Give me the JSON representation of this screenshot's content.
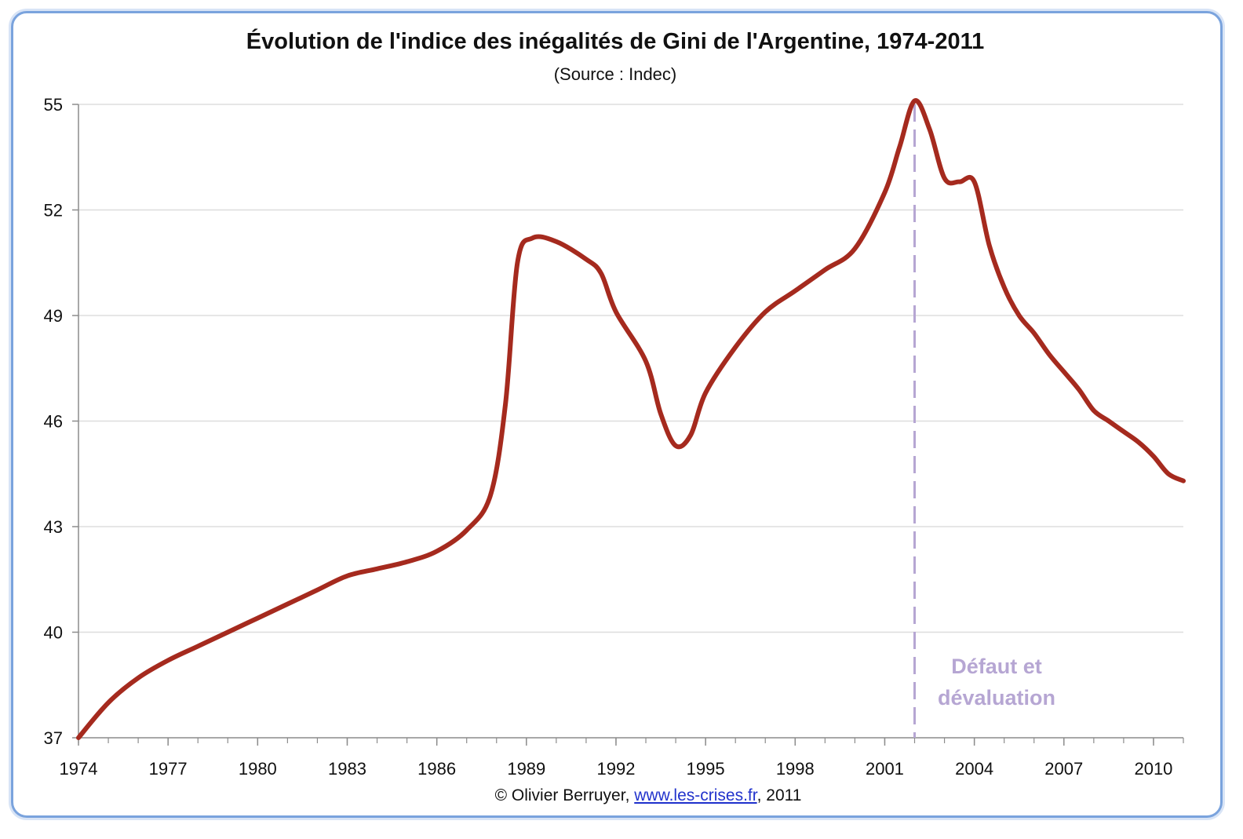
{
  "chart_data": {
    "type": "line",
    "title": "Évolution de l'indice des inégalités de Gini de l'Argentine, 1974-2011",
    "subtitle": "(Source : Indec)",
    "xlabel": "",
    "ylabel": "",
    "xlim": [
      1974,
      2011
    ],
    "ylim": [
      37,
      55
    ],
    "x_ticks": [
      1974,
      1977,
      1980,
      1983,
      1986,
      1989,
      1992,
      1995,
      1998,
      2001,
      2004,
      2007,
      2010
    ],
    "y_ticks": [
      37,
      40,
      43,
      46,
      49,
      52,
      55
    ],
    "grid": true,
    "line_color": "#a52a1e",
    "series": [
      {
        "x": [
          1974,
          1975,
          1976,
          1977,
          1978,
          1979,
          1980,
          1981,
          1982,
          1983,
          1984,
          1985,
          1986,
          1987,
          1987.8,
          1988.3,
          1988.7,
          1989.2,
          1990,
          1991,
          1991.5,
          1992,
          1993,
          1993.5,
          1994,
          1994.5,
          1995,
          1996,
          1997,
          1998,
          1999,
          2000,
          2001,
          2001.5,
          2002,
          2002.5,
          2003,
          2003.5,
          2004,
          2004.5,
          2005,
          2005.5,
          2006,
          2006.5,
          2007,
          2007.5,
          2008,
          2008.5,
          2009,
          2009.5,
          2010,
          2010.5,
          2011
        ],
        "y": [
          37.0,
          38.0,
          38.7,
          39.2,
          39.6,
          40.0,
          40.4,
          40.8,
          41.2,
          41.6,
          41.8,
          42.0,
          42.3,
          42.9,
          43.9,
          46.5,
          50.5,
          51.2,
          51.1,
          50.6,
          50.2,
          49.1,
          47.7,
          46.2,
          45.3,
          45.6,
          46.8,
          48.1,
          49.1,
          49.7,
          50.3,
          50.9,
          52.5,
          53.8,
          55.1,
          54.3,
          52.9,
          52.8,
          52.8,
          51.0,
          49.8,
          49.0,
          48.5,
          47.9,
          47.4,
          46.9,
          46.3,
          46.0,
          45.7,
          45.4,
          45.0,
          44.5,
          44.3
        ]
      }
    ],
    "vline": {
      "x": 2002,
      "color": "#b6a6d3",
      "style": "dashed"
    },
    "annotation": [
      "Défaut et",
      "dévaluation"
    ]
  },
  "credit": {
    "prefix": "© Olivier Berruyer, ",
    "link": "www.les-crises.fr",
    "suffix": ",  2011"
  }
}
